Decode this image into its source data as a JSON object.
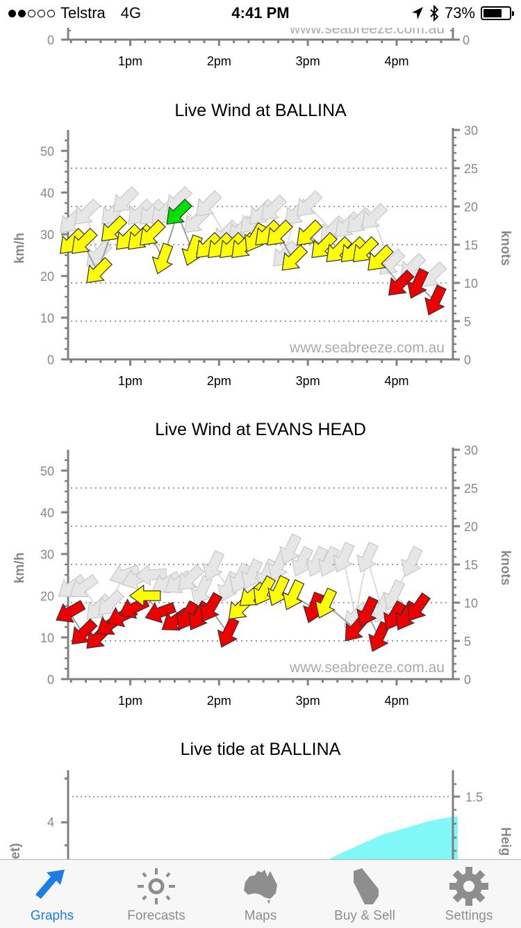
{
  "status_bar": {
    "signal_dots_filled": 2,
    "signal_dots_total": 5,
    "carrier": "Telstra",
    "network": "4G",
    "time": "4:41 PM",
    "battery_percent": "73%",
    "battery_level": 0.73,
    "icons": [
      "location-arrow-icon",
      "bluetooth-icon",
      "battery-icon"
    ]
  },
  "colors": {
    "axis": "#808080",
    "grid": "#999999",
    "arrow_yellow": "#ffff00",
    "arrow_green": "#00e000",
    "arrow_red": "#ee0000",
    "arrow_gust": "#e6e6e6",
    "tide_fill": "#80f8f8",
    "tab_active": "#1a7ee6",
    "tab_inactive": "#8e8e8e"
  },
  "chart_data": [
    {
      "type": "scatter",
      "title": "",
      "partial": true,
      "x_ticks": [
        "1pm",
        "2pm",
        "3pm",
        "4pm"
      ],
      "y_left_ticks": [
        "0"
      ],
      "y_right_ticks": [
        "0"
      ],
      "watermark": "www.seabreeze.com.au"
    },
    {
      "type": "scatter",
      "title": "Live Wind at BALLINA",
      "ylabel": "km/h",
      "ylabel_right": "knots",
      "ylim": [
        0,
        55
      ],
      "ylim_right": [
        0,
        30
      ],
      "y_left_ticks": [
        "0",
        "10",
        "20",
        "30",
        "40",
        "50"
      ],
      "y_right_ticks": [
        "0",
        "5",
        "10",
        "15",
        "20",
        "25",
        "30"
      ],
      "x_ticks": [
        "1pm",
        "2pm",
        "3pm",
        "4pm"
      ],
      "xlim_minutes_after_noon": [
        18,
        278
      ],
      "grid": "dotted at 5-knot intervals",
      "watermark": "www.seabreeze.com.au",
      "series": [
        {
          "name": "gust",
          "color": "#e6e6e6",
          "points": [
            {
              "t": 20,
              "kmh": 33,
              "dir": 225
            },
            {
              "t": 30,
              "kmh": 35,
              "dir": 225
            },
            {
              "t": 38,
              "kmh": 25,
              "dir": 225
            },
            {
              "t": 48,
              "kmh": 35,
              "dir": 225
            },
            {
              "t": 56,
              "kmh": 38,
              "dir": 225
            },
            {
              "t": 66,
              "kmh": 35,
              "dir": 225
            },
            {
              "t": 74,
              "kmh": 35,
              "dir": 225
            },
            {
              "t": 82,
              "kmh": 35,
              "dir": 225
            },
            {
              "t": 92,
              "kmh": 38,
              "dir": 225
            },
            {
              "t": 104,
              "kmh": 33,
              "dir": 225
            },
            {
              "t": 112,
              "kmh": 37,
              "dir": 225
            },
            {
              "t": 124,
              "kmh": 30,
              "dir": 225
            },
            {
              "t": 134,
              "kmh": 31,
              "dir": 225
            },
            {
              "t": 142,
              "kmh": 33,
              "dir": 225
            },
            {
              "t": 148,
              "kmh": 35,
              "dir": 225
            },
            {
              "t": 156,
              "kmh": 36,
              "dir": 225
            },
            {
              "t": 164,
              "kmh": 25,
              "dir": 225
            },
            {
              "t": 172,
              "kmh": 35,
              "dir": 225
            },
            {
              "t": 180,
              "kmh": 37,
              "dir": 225
            },
            {
              "t": 196,
              "kmh": 31,
              "dir": 225
            },
            {
              "t": 206,
              "kmh": 32,
              "dir": 225
            },
            {
              "t": 214,
              "kmh": 33,
              "dir": 225
            },
            {
              "t": 224,
              "kmh": 34,
              "dir": 225
            },
            {
              "t": 236,
              "kmh": 23,
              "dir": 225
            },
            {
              "t": 250,
              "kmh": 22,
              "dir": 225
            },
            {
              "t": 264,
              "kmh": 20,
              "dir": 225
            }
          ]
        },
        {
          "name": "wind",
          "points": [
            {
              "t": 20,
              "kmh": 28,
              "dir": 225,
              "color": "yellow"
            },
            {
              "t": 28,
              "kmh": 28,
              "dir": 225,
              "color": "yellow"
            },
            {
              "t": 38,
              "kmh": 21,
              "dir": 225,
              "color": "yellow"
            },
            {
              "t": 48,
              "kmh": 31,
              "dir": 225,
              "color": "yellow"
            },
            {
              "t": 58,
              "kmh": 29,
              "dir": 225,
              "color": "yellow"
            },
            {
              "t": 66,
              "kmh": 29,
              "dir": 225,
              "color": "yellow"
            },
            {
              "t": 74,
              "kmh": 30,
              "dir": 225,
              "color": "yellow"
            },
            {
              "t": 82,
              "kmh": 24,
              "dir": 200,
              "color": "yellow"
            },
            {
              "t": 92,
              "kmh": 35,
              "dir": 225,
              "color": "green"
            },
            {
              "t": 102,
              "kmh": 26,
              "dir": 200,
              "color": "yellow"
            },
            {
              "t": 112,
              "kmh": 27,
              "dir": 225,
              "color": "yellow"
            },
            {
              "t": 120,
              "kmh": 27,
              "dir": 225,
              "color": "yellow"
            },
            {
              "t": 128,
              "kmh": 27,
              "dir": 225,
              "color": "yellow"
            },
            {
              "t": 136,
              "kmh": 27,
              "dir": 225,
              "color": "yellow"
            },
            {
              "t": 144,
              "kmh": 29,
              "dir": 210,
              "color": "yellow"
            },
            {
              "t": 152,
              "kmh": 30,
              "dir": 225,
              "color": "yellow"
            },
            {
              "t": 160,
              "kmh": 30,
              "dir": 225,
              "color": "yellow"
            },
            {
              "t": 170,
              "kmh": 24,
              "dir": 225,
              "color": "yellow"
            },
            {
              "t": 180,
              "kmh": 30,
              "dir": 225,
              "color": "yellow"
            },
            {
              "t": 190,
              "kmh": 27,
              "dir": 225,
              "color": "yellow"
            },
            {
              "t": 200,
              "kmh": 26,
              "dir": 225,
              "color": "yellow"
            },
            {
              "t": 210,
              "kmh": 26,
              "dir": 225,
              "color": "yellow"
            },
            {
              "t": 218,
              "kmh": 26,
              "dir": 225,
              "color": "yellow"
            },
            {
              "t": 228,
              "kmh": 24,
              "dir": 225,
              "color": "yellow"
            },
            {
              "t": 242,
              "kmh": 18,
              "dir": 225,
              "color": "red"
            },
            {
              "t": 254,
              "kmh": 18,
              "dir": 205,
              "color": "red"
            },
            {
              "t": 266,
              "kmh": 14,
              "dir": 205,
              "color": "red"
            }
          ]
        }
      ]
    },
    {
      "type": "scatter",
      "title": "Live Wind at EVANS HEAD",
      "ylabel": "km/h",
      "ylabel_right": "knots",
      "ylim": [
        0,
        55
      ],
      "ylim_right": [
        0,
        30
      ],
      "y_left_ticks": [
        "0",
        "10",
        "20",
        "30",
        "40",
        "50"
      ],
      "y_right_ticks": [
        "0",
        "5",
        "10",
        "15",
        "20",
        "25",
        "30"
      ],
      "x_ticks": [
        "1pm",
        "2pm",
        "3pm",
        "4pm"
      ],
      "xlim_minutes_after_noon": [
        18,
        278
      ],
      "grid": "dotted at 5-knot intervals",
      "watermark": "www.seabreeze.com.au",
      "series": [
        {
          "name": "gust",
          "color": "#e6e6e6",
          "points": [
            {
              "t": 20,
              "kmh": 22,
              "dir": 235
            },
            {
              "t": 28,
              "kmh": 22,
              "dir": 235
            },
            {
              "t": 38,
              "kmh": 17,
              "dir": 225
            },
            {
              "t": 46,
              "kmh": 18,
              "dir": 225
            },
            {
              "t": 56,
              "kmh": 25,
              "dir": 250
            },
            {
              "t": 64,
              "kmh": 24,
              "dir": 250
            },
            {
              "t": 74,
              "kmh": 25,
              "dir": 265
            },
            {
              "t": 84,
              "kmh": 23,
              "dir": 240
            },
            {
              "t": 92,
              "kmh": 23,
              "dir": 235
            },
            {
              "t": 100,
              "kmh": 24,
              "dir": 225
            },
            {
              "t": 108,
              "kmh": 21,
              "dir": 205
            },
            {
              "t": 116,
              "kmh": 27,
              "dir": 205
            },
            {
              "t": 126,
              "kmh": 22,
              "dir": 205
            },
            {
              "t": 134,
              "kmh": 24,
              "dir": 205
            },
            {
              "t": 142,
              "kmh": 25,
              "dir": 205
            },
            {
              "t": 152,
              "kmh": 25,
              "dir": 205
            },
            {
              "t": 160,
              "kmh": 27,
              "dir": 205
            },
            {
              "t": 168,
              "kmh": 31,
              "dir": 205
            },
            {
              "t": 176,
              "kmh": 28,
              "dir": 205
            },
            {
              "t": 186,
              "kmh": 28,
              "dir": 205
            },
            {
              "t": 194,
              "kmh": 28,
              "dir": 205
            },
            {
              "t": 204,
              "kmh": 29,
              "dir": 205
            },
            {
              "t": 212,
              "kmh": 15,
              "dir": 225
            },
            {
              "t": 220,
              "kmh": 29,
              "dir": 205
            },
            {
              "t": 230,
              "kmh": 17,
              "dir": 205
            },
            {
              "t": 238,
              "kmh": 20,
              "dir": 205
            },
            {
              "t": 250,
              "kmh": 28,
              "dir": 205
            }
          ]
        },
        {
          "name": "wind",
          "points": [
            {
              "t": 19,
              "kmh": 16,
              "dir": 240,
              "color": "red"
            },
            {
              "t": 28,
              "kmh": 11,
              "dir": 225,
              "color": "red"
            },
            {
              "t": 38,
              "kmh": 10,
              "dir": 225,
              "color": "red"
            },
            {
              "t": 46,
              "kmh": 13,
              "dir": 235,
              "color": "red"
            },
            {
              "t": 54,
              "kmh": 15,
              "dir": 245,
              "color": "red"
            },
            {
              "t": 62,
              "kmh": 17,
              "dir": 245,
              "color": "red"
            },
            {
              "t": 70,
              "kmh": 20,
              "dir": 270,
              "color": "yellow"
            },
            {
              "t": 80,
              "kmh": 16,
              "dir": 250,
              "color": "red"
            },
            {
              "t": 90,
              "kmh": 14,
              "dir": 235,
              "color": "red"
            },
            {
              "t": 98,
              "kmh": 15,
              "dir": 210,
              "color": "red"
            },
            {
              "t": 106,
              "kmh": 15,
              "dir": 210,
              "color": "red"
            },
            {
              "t": 114,
              "kmh": 17,
              "dir": 210,
              "color": "red"
            },
            {
              "t": 126,
              "kmh": 11,
              "dir": 205,
              "color": "red"
            },
            {
              "t": 134,
              "kmh": 17,
              "dir": 225,
              "color": "yellow"
            },
            {
              "t": 142,
              "kmh": 20,
              "dir": 230,
              "color": "yellow"
            },
            {
              "t": 150,
              "kmh": 21,
              "dir": 210,
              "color": "yellow"
            },
            {
              "t": 160,
              "kmh": 21,
              "dir": 205,
              "color": "yellow"
            },
            {
              "t": 170,
              "kmh": 20,
              "dir": 205,
              "color": "yellow"
            },
            {
              "t": 184,
              "kmh": 17,
              "dir": 200,
              "color": "red"
            },
            {
              "t": 192,
              "kmh": 18,
              "dir": 205,
              "color": "yellow"
            },
            {
              "t": 212,
              "kmh": 12,
              "dir": 220,
              "color": "red"
            },
            {
              "t": 220,
              "kmh": 16,
              "dir": 205,
              "color": "red"
            },
            {
              "t": 228,
              "kmh": 10,
              "dir": 205,
              "color": "red"
            },
            {
              "t": 238,
              "kmh": 15,
              "dir": 210,
              "color": "red"
            },
            {
              "t": 246,
              "kmh": 15,
              "dir": 210,
              "color": "red"
            },
            {
              "t": 254,
              "kmh": 17,
              "dir": 215,
              "color": "red"
            }
          ]
        }
      ]
    },
    {
      "type": "area",
      "title": "Live tide at BALLINA",
      "partial": true,
      "ylabel": "et)",
      "ylabel_right": "Heig",
      "y_left_ticks": [
        "4"
      ],
      "y_right_ticks": [
        "1.5"
      ],
      "series": [
        {
          "name": "tide",
          "color": "#80f8f8",
          "values_m": [
            {
              "t": 168,
              "m": 0.95
            },
            {
              "t": 200,
              "m": 1.12
            },
            {
              "t": 230,
              "m": 1.25
            },
            {
              "t": 262,
              "m": 1.34
            },
            {
              "t": 278,
              "m": 1.37
            }
          ]
        }
      ]
    }
  ],
  "tab_bar": {
    "tabs": [
      {
        "label": "Graphs",
        "icon": "graphs-arrow-icon",
        "active": true
      },
      {
        "label": "Forecasts",
        "icon": "sun-icon",
        "active": false
      },
      {
        "label": "Maps",
        "icon": "australia-map-icon",
        "active": false
      },
      {
        "label": "Buy & Sell",
        "icon": "tag-icon",
        "active": false
      },
      {
        "label": "Settings",
        "icon": "gear-icon",
        "active": false
      }
    ]
  }
}
